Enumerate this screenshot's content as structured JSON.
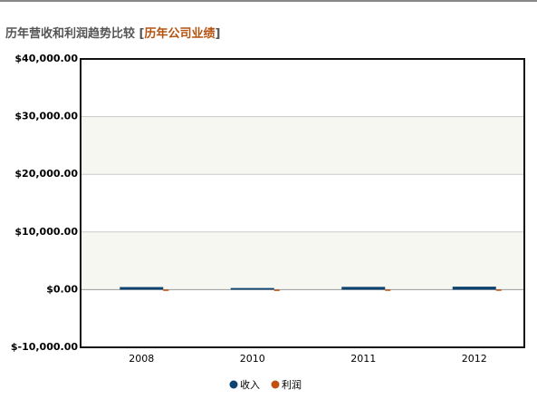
{
  "chart_data": {
    "type": "bar",
    "title_parts": [
      "历年营收和利润趋势比较 [",
      "历年公司业绩",
      "]"
    ],
    "categories": [
      "2008",
      "2010",
      "2011",
      "2012"
    ],
    "series": [
      {
        "name": "收入",
        "color": "#0e4370",
        "values": [
          450,
          280,
          480,
          520
        ]
      },
      {
        "name": "利润",
        "color": "#c0500f",
        "values": [
          20,
          10,
          25,
          30
        ]
      }
    ],
    "ylim": [
      -10000,
      40000
    ],
    "yticks": [
      {
        "value": -10000,
        "label": "$-10,000.00"
      },
      {
        "value": 0,
        "label": "$0.00"
      },
      {
        "value": 10000,
        "label": "$10,000.00"
      },
      {
        "value": 20000,
        "label": "$20,000.00"
      },
      {
        "value": 30000,
        "label": "$30,000.00"
      },
      {
        "value": 40000,
        "label": "$40,000.00"
      }
    ],
    "grid": true
  }
}
